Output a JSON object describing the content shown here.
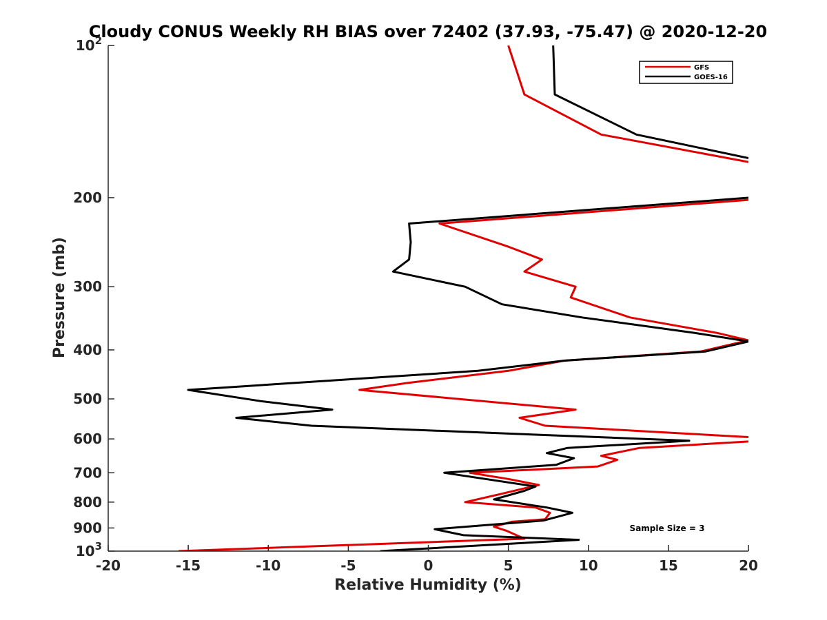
{
  "chart_data": {
    "type": "line",
    "title": "Cloudy CONUS Weekly RH BIAS over 72402 (37.93, -75.47) @ 2020-12-20",
    "xlabel": "Relative Humidity (%)",
    "ylabel": "Pressure (mb)",
    "xlim": [
      -20,
      20
    ],
    "ylim": [
      100,
      1000
    ],
    "y_scale": "log",
    "y_reversed": true,
    "grid": false,
    "legend_position": "top-right",
    "x_ticks": [
      -20,
      -15,
      -10,
      -5,
      0,
      5,
      10,
      15,
      20
    ],
    "y_ticks": [
      {
        "value": 100,
        "base": "10",
        "exp": "2"
      },
      {
        "value": 200,
        "label": "200"
      },
      {
        "value": 300,
        "label": "300"
      },
      {
        "value": 400,
        "label": "400"
      },
      {
        "value": 500,
        "label": "500"
      },
      {
        "value": 600,
        "label": "600"
      },
      {
        "value": 700,
        "label": "700"
      },
      {
        "value": 800,
        "label": "800"
      },
      {
        "value": 900,
        "label": "900"
      },
      {
        "value": 1000,
        "base": "10",
        "exp": "3"
      }
    ],
    "annotation": "Sample Size = 3",
    "series": [
      {
        "name": "GFS",
        "color": "#e00000",
        "points": [
          [
            5,
            100
          ],
          [
            6,
            125
          ],
          [
            10.8,
            150
          ],
          [
            20,
            170
          ],
          null,
          [
            20,
            202
          ],
          [
            0.7,
            225
          ],
          [
            5,
            250
          ],
          [
            7.1,
            265
          ],
          [
            6,
            280
          ],
          [
            9.2,
            300
          ],
          [
            8.9,
            315
          ],
          [
            12.6,
            345
          ],
          [
            18,
            370
          ],
          [
            20,
            383
          ],
          [
            17,
            403
          ],
          [
            8.5,
            420
          ],
          [
            5,
            440
          ],
          [
            -1.3,
            465
          ],
          [
            -4.3,
            480
          ],
          [
            9.2,
            525
          ],
          [
            5.7,
            545
          ],
          [
            7.3,
            565
          ],
          [
            20,
            595
          ],
          null,
          [
            20,
            607
          ],
          [
            13.2,
            625
          ],
          [
            10.8,
            648
          ],
          [
            11.8,
            660
          ],
          [
            10.6,
            680
          ],
          [
            2.6,
            700
          ],
          [
            5,
            720
          ],
          [
            6.9,
            740
          ],
          [
            4.6,
            770
          ],
          [
            2.3,
            800
          ],
          [
            6.7,
            820
          ],
          [
            7.6,
            840
          ],
          [
            7.3,
            865
          ],
          [
            5.2,
            875
          ],
          [
            4.1,
            895
          ],
          [
            4.9,
            912
          ],
          [
            6,
            945
          ],
          [
            -15.6,
            1000
          ]
        ]
      },
      {
        "name": "GOES-16",
        "color": "#000000",
        "points": [
          [
            7.8,
            100
          ],
          [
            7.9,
            125
          ],
          [
            13,
            150
          ],
          [
            20,
            167
          ],
          null,
          [
            20,
            200
          ],
          [
            -1.2,
            225
          ],
          [
            -1.1,
            245
          ],
          [
            -1.2,
            265
          ],
          [
            -2.2,
            280
          ],
          [
            2.3,
            300
          ],
          [
            4.6,
            325
          ],
          [
            9.6,
            345
          ],
          [
            16.6,
            370
          ],
          [
            20,
            385
          ],
          [
            17.3,
            403
          ],
          [
            8.5,
            420
          ],
          [
            3.1,
            440
          ],
          [
            -15,
            480
          ],
          [
            -10.5,
            505
          ],
          [
            -6,
            525
          ],
          [
            -12,
            545
          ],
          [
            -7.3,
            565
          ],
          [
            16.3,
            605
          ],
          [
            8.7,
            625
          ],
          [
            7.4,
            640
          ],
          [
            9.1,
            655
          ],
          [
            8,
            675
          ],
          [
            1,
            700
          ],
          [
            6.7,
            745
          ],
          [
            6,
            760
          ],
          [
            4.1,
            790
          ],
          [
            7.4,
            820
          ],
          [
            9,
            840
          ],
          [
            7.2,
            870
          ],
          [
            0.4,
            905
          ],
          [
            2.2,
            930
          ],
          [
            9.4,
            950
          ],
          [
            -3,
            1000
          ]
        ]
      }
    ]
  }
}
